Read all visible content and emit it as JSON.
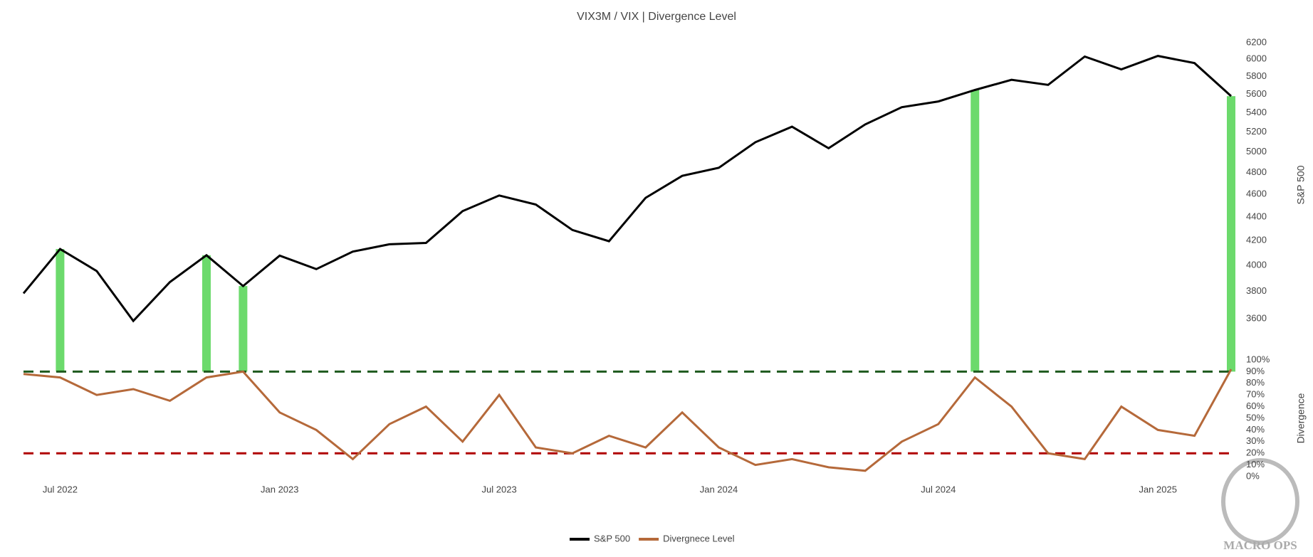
{
  "chart_data": {
    "type": "line",
    "title": "VIX3M / VIX | Divergence Level",
    "x": [
      "2022-06",
      "2022-07",
      "2022-08",
      "2022-09",
      "2022-10",
      "2022-11",
      "2022-12",
      "2023-01",
      "2023-02",
      "2023-03",
      "2023-04",
      "2023-05",
      "2023-06",
      "2023-07",
      "2023-08",
      "2023-09",
      "2023-10",
      "2023-11",
      "2023-12",
      "2024-01",
      "2024-02",
      "2024-03",
      "2024-04",
      "2024-05",
      "2024-06",
      "2024-07",
      "2024-08",
      "2024-09",
      "2024-10",
      "2024-11",
      "2024-12",
      "2025-01",
      "2025-02",
      "2025-03"
    ],
    "xticks": [
      {
        "value": "2022-07",
        "label": "Jul 2022"
      },
      {
        "value": "2023-01",
        "label": "Jan 2023"
      },
      {
        "value": "2023-07",
        "label": "Jul 2023"
      },
      {
        "value": "2024-01",
        "label": "Jan 2024"
      },
      {
        "value": "2024-07",
        "label": "Jul 2024"
      },
      {
        "value": "2025-01",
        "label": "Jan 2025"
      }
    ],
    "series": [
      {
        "name": "S&P 500",
        "color": "#000000",
        "axis": "y",
        "values": [
          3785,
          4130,
          3955,
          3585,
          3870,
          4080,
          3840,
          4077,
          3970,
          4109,
          4169,
          4180,
          4450,
          4589,
          4508,
          4288,
          4194,
          4568,
          4770,
          4846,
          5096,
          5254,
          5036,
          5278,
          5460,
          5522,
          5648,
          5762,
          5705,
          6032,
          5882,
          6040,
          5955,
          5580
        ]
      },
      {
        "name": "Divergnece Level",
        "color": "#b5693a",
        "axis": "y2",
        "values": [
          88,
          85,
          70,
          75,
          65,
          85,
          90,
          55,
          40,
          15,
          45,
          60,
          30,
          70,
          25,
          20,
          35,
          25,
          55,
          25,
          10,
          15,
          8,
          5,
          30,
          45,
          85,
          60,
          20,
          15,
          60,
          40,
          35,
          92
        ]
      }
    ],
    "y_label": "S&P 500",
    "log_y": true,
    "ylim": [
      3320,
      6260
    ],
    "yticks": [
      3600,
      3800,
      4000,
      4200,
      4400,
      4600,
      4800,
      5000,
      5200,
      5400,
      5600,
      5800,
      6000,
      6200
    ],
    "y2_label": "Divergence",
    "y2lim": [
      0,
      100
    ],
    "y2ticks": [
      {
        "value": 0,
        "label": "0%"
      },
      {
        "value": 10,
        "label": "10%"
      },
      {
        "value": 20,
        "label": "20%"
      },
      {
        "value": 30,
        "label": "30%"
      },
      {
        "value": 40,
        "label": "40%"
      },
      {
        "value": 50,
        "label": "50%"
      },
      {
        "value": 60,
        "label": "60%"
      },
      {
        "value": 70,
        "label": "70%"
      },
      {
        "value": 80,
        "label": "80%"
      },
      {
        "value": 90,
        "label": "90%"
      },
      {
        "value": 100,
        "label": "100%"
      }
    ],
    "thresholds": [
      {
        "value": 90,
        "color": "#1e5a1e"
      },
      {
        "value": 20,
        "color": "#b00000"
      }
    ],
    "highlights": [
      "2022-07",
      "2022-11",
      "2022-12",
      "2024-08",
      "2025-03"
    ],
    "highlight_color": "#5cd65c",
    "watermark": "MACRO OPS"
  }
}
